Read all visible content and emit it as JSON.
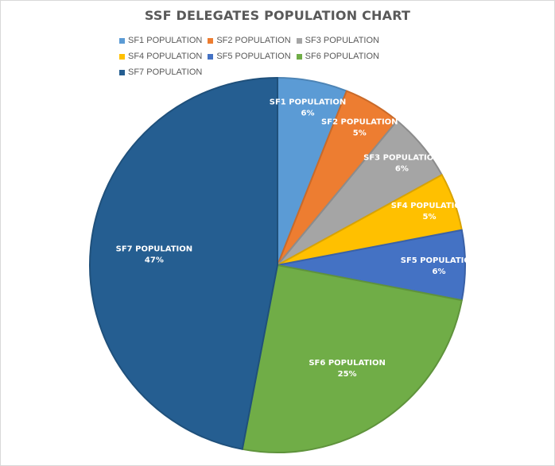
{
  "chart_data": {
    "type": "pie",
    "title": "SSF DELEGATES POPULATION CHART",
    "legend_position": "top",
    "categories": [
      "SF1 POPULATION",
      "SF2 POPULATION",
      "SF3 POPULATION",
      "SF4 POPULATION",
      "SF5 POPULATION",
      "SF6 POPULATION",
      "SF7 POPULATION"
    ],
    "values": [
      6,
      5,
      6,
      5,
      6,
      25,
      47
    ],
    "value_labels": [
      "6%",
      "5%",
      "6%",
      "5%",
      "6%",
      "25%",
      "47%"
    ],
    "colors": [
      "#5b9bd5",
      "#ed7d31",
      "#a5a5a5",
      "#ffc000",
      "#4472c4",
      "#70ad47",
      "#255e91"
    ]
  }
}
